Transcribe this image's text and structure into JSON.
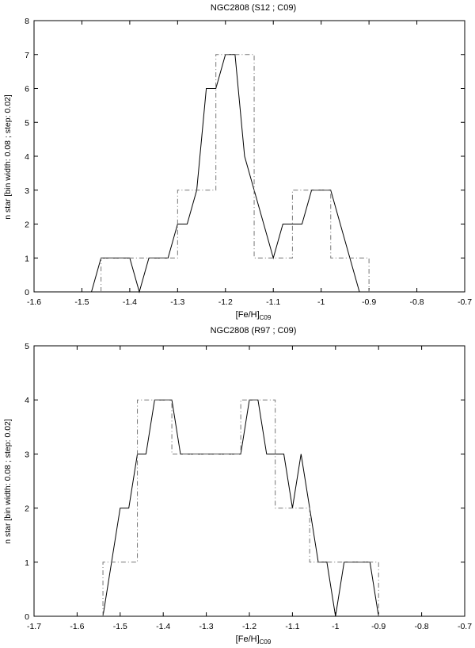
{
  "chart_data": [
    {
      "type": "line",
      "title": "NGC2808 (S12 ; C09)",
      "xlabel_main": "[Fe/H]",
      "xlabel_sub": "C09",
      "ylabel": "n star [bin width: 0.08 ; step: 0.02]",
      "xlim": [
        -1.6,
        -0.7
      ],
      "ylim": [
        0,
        8
      ],
      "xticks": [
        -1.6,
        -1.5,
        -1.4,
        -1.3,
        -1.2,
        -1.1,
        -1.0,
        -0.9,
        -0.8,
        -0.7
      ],
      "xtick_labels": [
        "-1.6",
        "-1.5",
        "-1.4",
        "-1.3",
        "-1.2",
        "-1.1",
        "-1",
        "-0.9",
        "-0.8",
        "-0.7"
      ],
      "yticks": [
        0,
        1,
        2,
        3,
        4,
        5,
        6,
        7,
        8
      ],
      "ytick_labels": [
        "0",
        "1",
        "2",
        "3",
        "4",
        "5",
        "6",
        "7",
        "8"
      ],
      "series": [
        {
          "style": "solid",
          "x": [
            -1.6,
            -1.48,
            -1.46,
            -1.44,
            -1.42,
            -1.4,
            -1.38,
            -1.36,
            -1.34,
            -1.32,
            -1.3,
            -1.28,
            -1.26,
            -1.24,
            -1.22,
            -1.2,
            -1.18,
            -1.16,
            -1.14,
            -1.12,
            -1.1,
            -1.08,
            -1.06,
            -1.04,
            -1.02,
            -1.0,
            -0.98,
            -0.96,
            -0.94,
            -0.92,
            -0.9,
            -0.7
          ],
          "y": [
            0,
            0,
            1,
            1,
            1,
            1,
            0,
            1,
            1,
            1,
            2,
            2,
            3,
            6,
            6,
            7,
            7,
            4,
            3,
            2,
            1,
            2,
            2,
            2,
            3,
            3,
            3,
            2,
            1,
            0,
            0,
            0
          ]
        },
        {
          "style": "dashdot",
          "x": [
            -1.46,
            -1.46,
            -1.3,
            -1.3,
            -1.22,
            -1.22,
            -1.14,
            -1.14,
            -1.06,
            -1.06,
            -0.98,
            -0.98,
            -0.9,
            -0.9
          ],
          "y": [
            0,
            1,
            1,
            3,
            3,
            7,
            7,
            1,
            1,
            3,
            3,
            1,
            1,
            0
          ]
        }
      ]
    },
    {
      "type": "line",
      "title": "NGC2808 (R97 ; C09)",
      "xlabel_main": "[Fe/H]",
      "xlabel_sub": "C09",
      "ylabel": "n star [bin width: 0.08 ; step: 0.02]",
      "xlim": [
        -1.7,
        -0.7
      ],
      "ylim": [
        0,
        5
      ],
      "xticks": [
        -1.7,
        -1.6,
        -1.5,
        -1.4,
        -1.3,
        -1.2,
        -1.1,
        -1.0,
        -0.9,
        -0.8,
        -0.7
      ],
      "xtick_labels": [
        "-1.7",
        "-1.6",
        "-1.5",
        "-1.4",
        "-1.3",
        "-1.2",
        "-1.1",
        "-1",
        "-0.9",
        "-0.8",
        "-0.7"
      ],
      "yticks": [
        0,
        1,
        2,
        3,
        4,
        5
      ],
      "ytick_labels": [
        "0",
        "1",
        "2",
        "3",
        "4",
        "5"
      ],
      "series": [
        {
          "style": "solid",
          "x": [
            -1.66,
            -1.54,
            -1.52,
            -1.5,
            -1.48,
            -1.46,
            -1.44,
            -1.42,
            -1.4,
            -1.38,
            -1.36,
            -1.34,
            -1.32,
            -1.3,
            -1.28,
            -1.26,
            -1.24,
            -1.22,
            -1.2,
            -1.18,
            -1.16,
            -1.14,
            -1.12,
            -1.1,
            -1.08,
            -1.06,
            -1.04,
            -1.02,
            -1.0,
            -0.98,
            -0.96,
            -0.94,
            -0.92,
            -0.9,
            -0.76
          ],
          "y": [
            0,
            0,
            1,
            2,
            2,
            3,
            3,
            4,
            4,
            4,
            3,
            3,
            3,
            3,
            3,
            3,
            3,
            3,
            4,
            4,
            3,
            3,
            3,
            2,
            3,
            2,
            1,
            1,
            0,
            1,
            1,
            1,
            1,
            0,
            0
          ]
        },
        {
          "style": "dashdot",
          "x": [
            -1.54,
            -1.54,
            -1.46,
            -1.46,
            -1.38,
            -1.38,
            -1.22,
            -1.22,
            -1.14,
            -1.14,
            -1.06,
            -1.06,
            -0.9,
            -0.9
          ],
          "y": [
            0,
            1,
            1,
            4,
            4,
            3,
            3,
            4,
            4,
            2,
            2,
            1,
            1,
            0
          ]
        }
      ]
    }
  ]
}
